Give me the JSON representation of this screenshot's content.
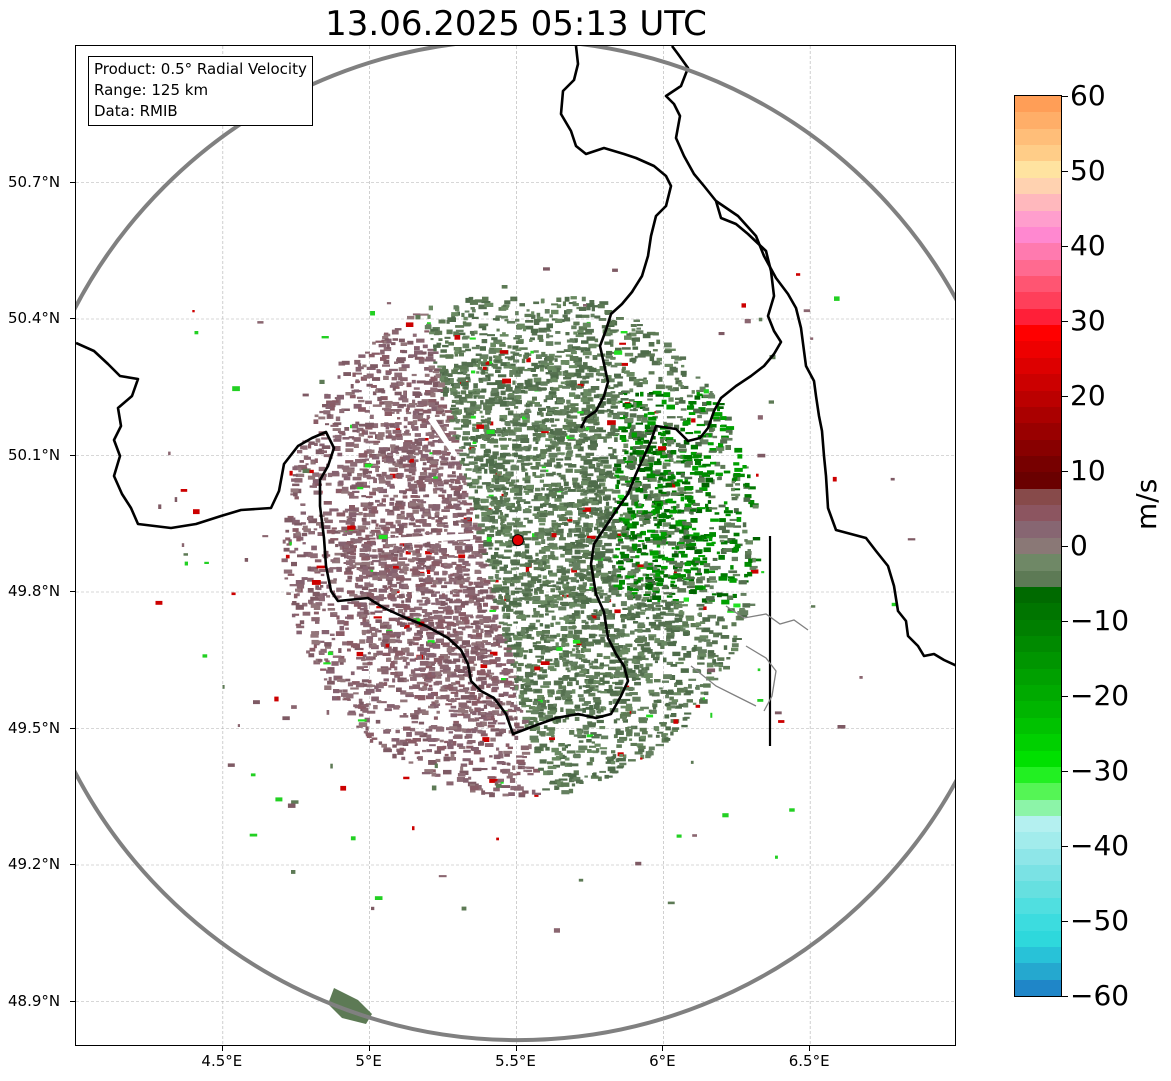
{
  "title": "13.06.2025 05:13 UTC",
  "info_box": {
    "product": "Product: 0.5° Radial Velocity",
    "range": "Range: 125 km",
    "data": "Data: RMIB"
  },
  "map": {
    "lon_range": [
      4.0,
      7.0
    ],
    "lat_range": [
      48.8,
      51.0
    ],
    "x_ticks": [
      "4.5°E",
      "5°E",
      "5.5°E",
      "6°E",
      "6.5°E"
    ],
    "x_tick_values": [
      4.5,
      5.0,
      5.5,
      6.0,
      6.5
    ],
    "y_ticks": [
      "50.7°N",
      "50.4°N",
      "50.1°N",
      "49.8°N",
      "49.5°N",
      "49.2°N",
      "48.9°N"
    ],
    "y_tick_values": [
      50.7,
      50.4,
      50.1,
      49.8,
      49.5,
      49.2,
      48.9
    ],
    "radar_site": {
      "lon": 5.505,
      "lat": 49.914
    },
    "grid": true,
    "colors": {
      "range_ring": "#808080",
      "borders": "#000000",
      "admin_borders": "#808080",
      "radar_marker": "#e00000"
    }
  },
  "colorbar": {
    "unit": "m/s",
    "range": [
      -60,
      60
    ],
    "ticks": [
      "60",
      "50",
      "40",
      "30",
      "20",
      "10",
      "0",
      "−10",
      "−20",
      "−30",
      "−40",
      "−50",
      "−60"
    ],
    "bands": [
      "#ff9e57",
      "#ffae68",
      "#ffbe79",
      "#ffcd88",
      "#ffe3a0",
      "#ffd2b0",
      "#ffb8bd",
      "#ff9ecd",
      "#ff88d0",
      "#ff7aaf",
      "#ff6a90",
      "#ff5572",
      "#ff3f5a",
      "#ff1f38",
      "#ff0000",
      "#ee0000",
      "#dd0000",
      "#cc0000",
      "#bb0000",
      "#aa0000",
      "#990000",
      "#880000",
      "#770000",
      "#6a0000",
      "#874a4a",
      "#8c5560",
      "#876672",
      "#8a7876",
      "#6f8866",
      "#5d7a55",
      "#006a00",
      "#007500",
      "#007f00",
      "#008a00",
      "#009500",
      "#00a000",
      "#00aa00",
      "#00b500",
      "#00c200",
      "#00d000",
      "#00e000",
      "#22f022",
      "#55f555",
      "#8cf4a8",
      "#b4f0f0",
      "#a2ecec",
      "#8ee6e8",
      "#7ae2e4",
      "#66e0e0",
      "#50dfe0",
      "#3cdcdf",
      "#2ed8dc",
      "#28c2d8",
      "#25a8cf",
      "#1f86c8"
    ]
  }
}
